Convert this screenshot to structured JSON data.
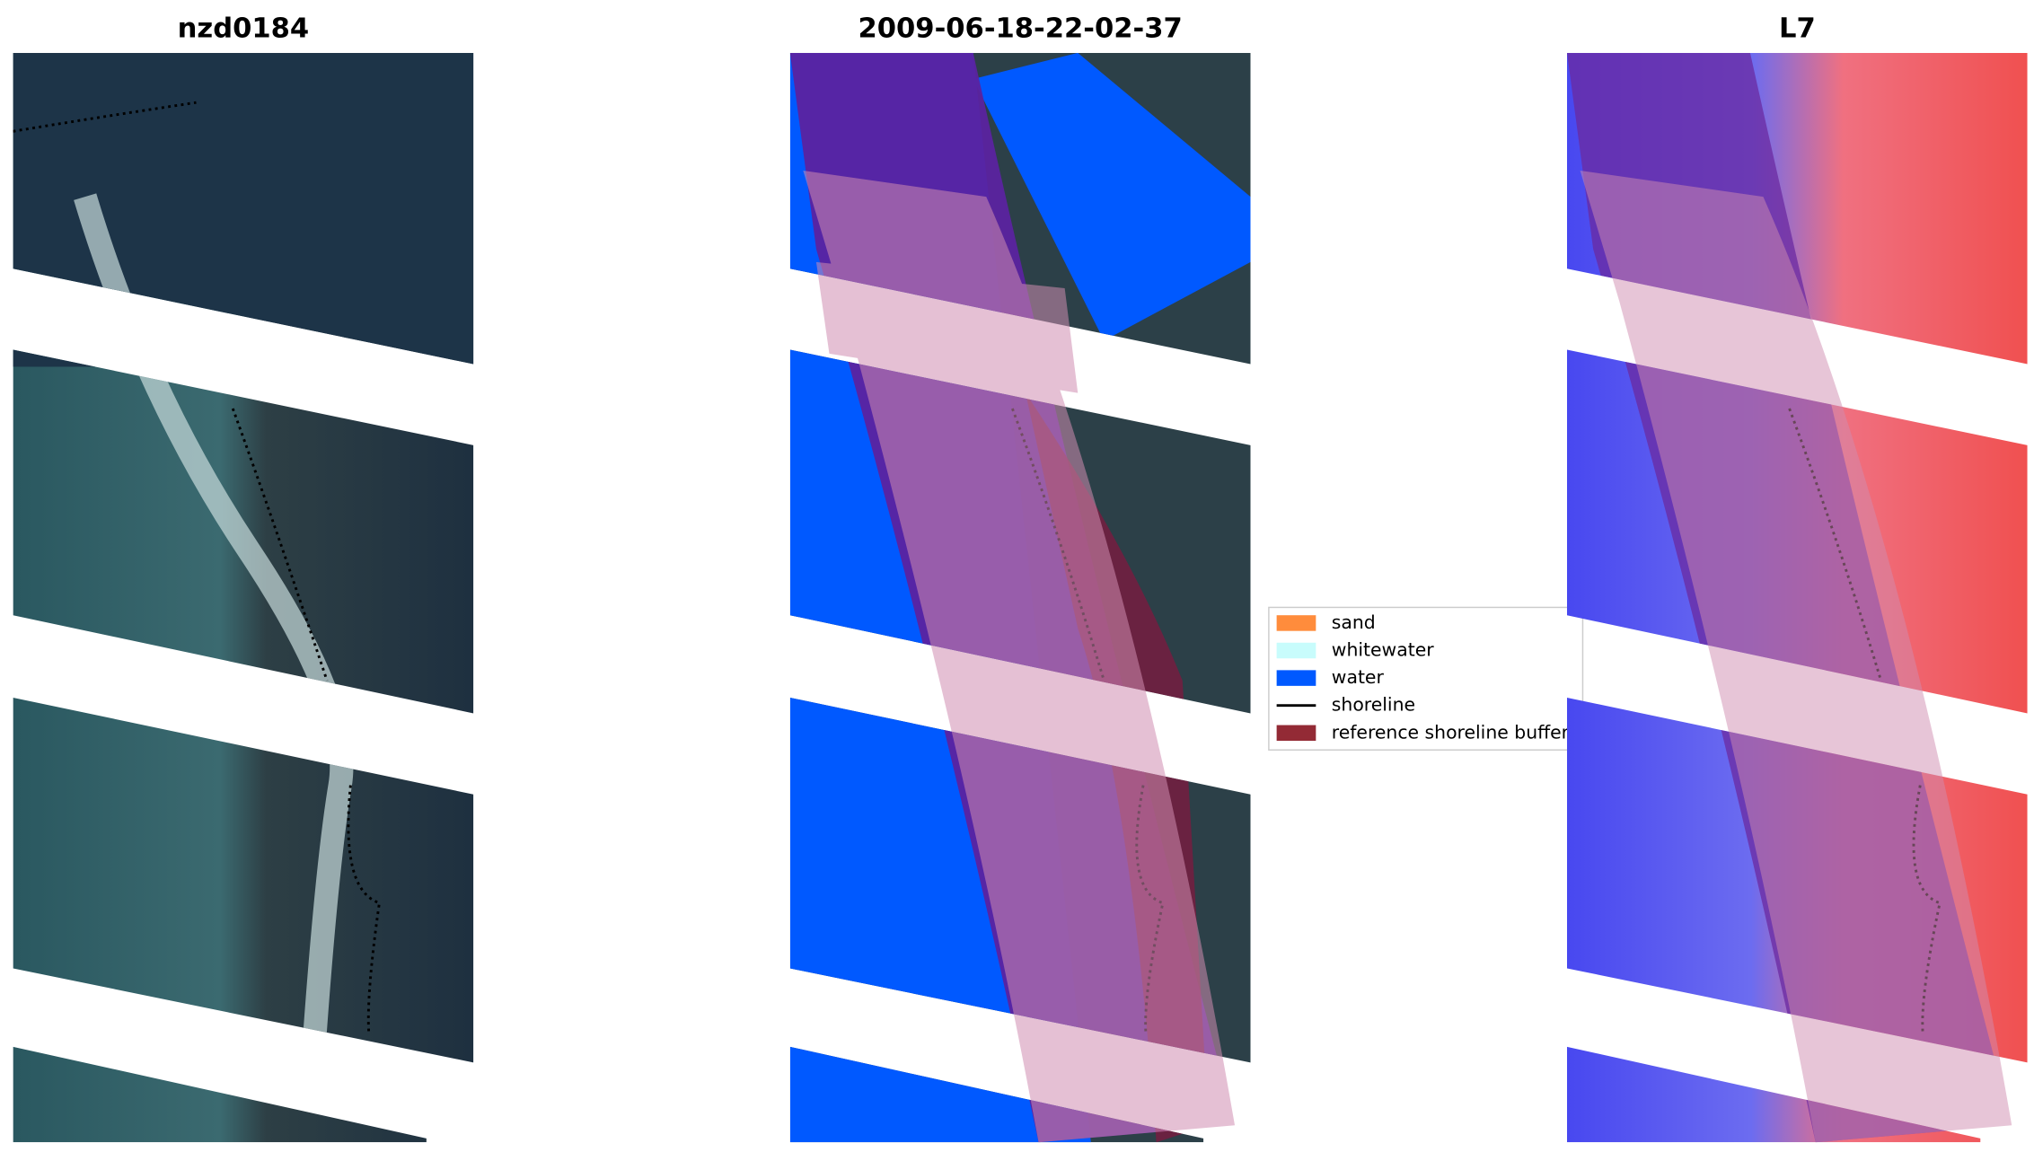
{
  "panels": [
    {
      "title": "nzd0184"
    },
    {
      "title": "2009-06-18-22-02-37"
    },
    {
      "title": "L7"
    }
  ],
  "legend": {
    "items": [
      {
        "label": "sand",
        "color": "#ff8c3c",
        "kind": "patch"
      },
      {
        "label": "whitewater",
        "color": "#c8fcfc",
        "kind": "patch"
      },
      {
        "label": "water",
        "color": "#0059ff",
        "kind": "patch"
      },
      {
        "label": "shoreline",
        "color": "#000000",
        "kind": "line"
      },
      {
        "label": "reference shoreline buffer",
        "color": "#932a35",
        "kind": "patch"
      }
    ]
  }
}
